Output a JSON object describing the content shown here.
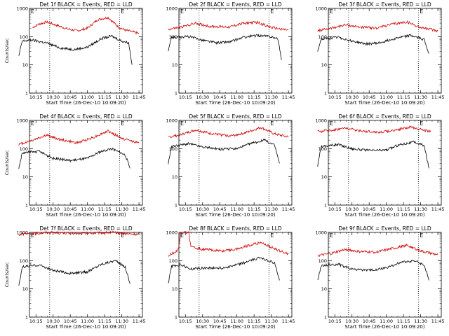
{
  "chart_data": [
    {
      "type": "line",
      "title": "Det 1f BLACK = Events, RED = LLD",
      "xlabel": "Start Time (26-Dec-10 10:09:20)",
      "ylabel": "Counts/sec",
      "yscale": "log",
      "ylim": [
        1,
        1000
      ],
      "xticks": [
        "10:15",
        "10:30",
        "10:45",
        "11:00",
        "11:15",
        "11:30",
        "11:45"
      ],
      "yticks": [
        "1",
        "10",
        "100",
        "1000"
      ],
      "markers": [
        "E",
        "E"
      ],
      "dotted_lines_at": [
        "10:27",
        "11:28"
      ],
      "series": [
        {
          "color": "#cc0000",
          "points": [
            [
              10.2,
              210
            ],
            [
              10.3,
              280
            ],
            [
              10.4,
              330
            ],
            [
              10.5,
              280
            ],
            [
              10.7,
              190
            ],
            [
              10.85,
              160
            ],
            [
              11.0,
              200
            ],
            [
              11.15,
              400
            ],
            [
              11.3,
              480
            ],
            [
              11.45,
              220
            ],
            [
              11.55,
              170
            ],
            [
              11.75,
              130
            ]
          ]
        },
        {
          "color": "#000000",
          "points": [
            [
              10.0,
              20
            ],
            [
              10.05,
              70
            ],
            [
              10.2,
              75
            ],
            [
              10.4,
              60
            ],
            [
              10.6,
              40
            ],
            [
              10.8,
              35
            ],
            [
              11.0,
              42
            ],
            [
              11.2,
              85
            ],
            [
              11.35,
              105
            ],
            [
              11.5,
              70
            ],
            [
              11.6,
              60
            ],
            [
              11.65,
              10
            ]
          ]
        }
      ]
    },
    {
      "type": "line",
      "title": "Det 2f BLACK = Events, RED = LLD",
      "xlabel": "Start Time (26-Dec-10 10:09:20)",
      "ylabel": "",
      "yscale": "log",
      "ylim": [
        1,
        1000
      ],
      "xticks": [
        "10:15",
        "10:30",
        "10:45",
        "11:00",
        "11:15",
        "11:30",
        "11:45"
      ],
      "yticks": [
        "1",
        "10",
        "100",
        "1000"
      ],
      "markers": [
        "E",
        "E"
      ],
      "dotted_lines_at": [
        "10:27",
        "11:28"
      ],
      "series": [
        {
          "color": "#cc0000",
          "points": [
            [
              10.0,
              180
            ],
            [
              10.2,
              220
            ],
            [
              10.4,
              300
            ],
            [
              10.6,
              230
            ],
            [
              10.9,
              220
            ],
            [
              11.1,
              300
            ],
            [
              11.3,
              320
            ],
            [
              11.5,
              210
            ],
            [
              11.75,
              170
            ]
          ]
        },
        {
          "color": "#000000",
          "points": [
            [
              10.0,
              30
            ],
            [
              10.05,
              95
            ],
            [
              10.3,
              100
            ],
            [
              10.5,
              75
            ],
            [
              10.7,
              60
            ],
            [
              10.9,
              65
            ],
            [
              11.1,
              95
            ],
            [
              11.3,
              110
            ],
            [
              11.5,
              100
            ],
            [
              11.6,
              80
            ],
            [
              11.65,
              15
            ]
          ]
        }
      ]
    },
    {
      "type": "line",
      "title": "Det 3f BLACK = Events, RED = LLD",
      "xlabel": "Start Time (26-Dec-10 10:09:20)",
      "ylabel": "",
      "yscale": "log",
      "ylim": [
        1,
        1000
      ],
      "xticks": [
        "10:15",
        "10:30",
        "10:45",
        "11:00",
        "11:15",
        "11:30",
        "11:45"
      ],
      "yticks": [
        "1",
        "10",
        "100",
        "1000"
      ],
      "markers": [
        "E",
        "E"
      ],
      "dotted_lines_at": [
        "10:27",
        "11:28"
      ],
      "series": [
        {
          "color": "#cc0000",
          "points": [
            [
              10.0,
              160
            ],
            [
              10.2,
              200
            ],
            [
              10.4,
              260
            ],
            [
              10.6,
              220
            ],
            [
              10.85,
              200
            ],
            [
              11.1,
              280
            ],
            [
              11.3,
              330
            ],
            [
              11.5,
              210
            ],
            [
              11.75,
              160
            ]
          ]
        },
        {
          "color": "#000000",
          "points": [
            [
              10.0,
              30
            ],
            [
              10.05,
              80
            ],
            [
              10.3,
              95
            ],
            [
              10.5,
              70
            ],
            [
              10.7,
              55
            ],
            [
              10.9,
              60
            ],
            [
              11.15,
              90
            ],
            [
              11.35,
              110
            ],
            [
              11.55,
              80
            ],
            [
              11.62,
              25
            ]
          ]
        }
      ]
    },
    {
      "type": "line",
      "title": "Det 4f BLACK = Events, RED = LLD",
      "xlabel": "Start Time (26-Dec-10 10:09:20)",
      "ylabel": "Counts/sec",
      "yscale": "log",
      "ylim": [
        1,
        1000
      ],
      "xticks": [
        "10:15",
        "10:30",
        "10:45",
        "11:00",
        "11:15",
        "11:30",
        "11:45"
      ],
      "yticks": [
        "1",
        "10",
        "100",
        "1000"
      ],
      "markers": [
        "E",
        "E"
      ],
      "dotted_lines_at": [
        "10:27",
        "11:28"
      ],
      "series": [
        {
          "color": "#cc0000",
          "points": [
            [
              10.0,
              140
            ],
            [
              10.2,
              200
            ],
            [
              10.4,
              300
            ],
            [
              10.6,
              210
            ],
            [
              10.85,
              160
            ],
            [
              11.1,
              260
            ],
            [
              11.3,
              420
            ],
            [
              11.5,
              230
            ],
            [
              11.75,
              160
            ]
          ]
        },
        {
          "color": "#000000",
          "points": [
            [
              10.0,
              20
            ],
            [
              10.05,
              70
            ],
            [
              10.3,
              80
            ],
            [
              10.5,
              45
            ],
            [
              10.75,
              38
            ],
            [
              11.0,
              45
            ],
            [
              11.2,
              80
            ],
            [
              11.35,
              100
            ],
            [
              11.55,
              60
            ],
            [
              11.62,
              20
            ]
          ]
        }
      ]
    },
    {
      "type": "line",
      "title": "Det 5f BLACK = Events, RED = LLD",
      "xlabel": "Start Time (26-Dec-10 10:09:20)",
      "ylabel": "",
      "yscale": "log",
      "ylim": [
        1,
        1000
      ],
      "xticks": [
        "10:15",
        "10:30",
        "10:45",
        "11:00",
        "11:15",
        "11:30",
        "11:45"
      ],
      "yticks": [
        "1",
        "10",
        "100",
        "1000"
      ],
      "markers": [
        "E",
        "E"
      ],
      "dotted_lines_at": [
        "10:27",
        "11:28"
      ],
      "series": [
        {
          "color": "#cc0000",
          "points": [
            [
              10.0,
              250
            ],
            [
              10.2,
              320
            ],
            [
              10.4,
              460
            ],
            [
              10.6,
              350
            ],
            [
              10.9,
              280
            ],
            [
              11.1,
              350
            ],
            [
              11.35,
              560
            ],
            [
              11.55,
              330
            ],
            [
              11.75,
              260
            ]
          ]
        },
        {
          "color": "#000000",
          "points": [
            [
              10.0,
              30
            ],
            [
              10.05,
              120
            ],
            [
              10.3,
              150
            ],
            [
              10.5,
              115
            ],
            [
              10.75,
              95
            ],
            [
              11.0,
              100
            ],
            [
              11.2,
              150
            ],
            [
              11.4,
              200
            ],
            [
              11.55,
              130
            ],
            [
              11.62,
              30
            ]
          ]
        }
      ]
    },
    {
      "type": "line",
      "title": "Det 6f BLACK = Events, RED = LLD",
      "xlabel": "Start Time (26-Dec-10 10:09:20)",
      "ylabel": "",
      "yscale": "log",
      "ylim": [
        1,
        1000
      ],
      "xticks": [
        "10:15",
        "10:30",
        "10:45",
        "11:00",
        "11:15",
        "11:30",
        "11:45"
      ],
      "yticks": [
        "1",
        "10",
        "100",
        "1000"
      ],
      "markers": [
        "E",
        "E"
      ],
      "dotted_lines_at": [
        "10:27",
        "11:28"
      ],
      "series": [
        {
          "color": "#cc0000",
          "points": [
            [
              10.0,
              400
            ],
            [
              10.2,
              450
            ],
            [
              10.4,
              540
            ],
            [
              10.6,
              430
            ],
            [
              10.9,
              380
            ],
            [
              11.1,
              440
            ],
            [
              11.35,
              580
            ],
            [
              11.55,
              450
            ],
            [
              11.65,
              400
            ]
          ]
        },
        {
          "color": "#000000",
          "points": [
            [
              10.0,
              25
            ],
            [
              10.05,
              120
            ],
            [
              10.3,
              140
            ],
            [
              10.5,
              100
            ],
            [
              10.75,
              85
            ],
            [
              11.0,
              90
            ],
            [
              11.2,
              140
            ],
            [
              11.4,
              170
            ],
            [
              11.55,
              130
            ],
            [
              11.62,
              20
            ]
          ]
        }
      ]
    },
    {
      "type": "line",
      "title": "Det 7f BLACK = Events, RED = LLD",
      "xlabel": "Start Time (26-Dec-10 10:09:20)",
      "ylabel": "Counts/sec",
      "yscale": "log",
      "ylim": [
        1,
        1000
      ],
      "xticks": [
        "10:15",
        "10:30",
        "10:45",
        "11:00",
        "11:15",
        "11:30",
        "11:45"
      ],
      "yticks": [
        "1",
        "10",
        "100",
        "1000"
      ],
      "markers": [
        "E",
        "E"
      ],
      "dotted_lines_at": [
        "10:27",
        "11:28"
      ],
      "series": [
        {
          "color": "#cc0000",
          "points": [
            [
              10.0,
              850
            ],
            [
              10.2,
              900
            ],
            [
              10.4,
              1000
            ],
            [
              10.6,
              950
            ],
            [
              10.9,
              900
            ],
            [
              11.1,
              950
            ],
            [
              11.35,
              1000
            ],
            [
              11.55,
              900
            ],
            [
              11.75,
              850
            ]
          ]
        },
        {
          "color": "#000000",
          "points": [
            [
              10.0,
              12
            ],
            [
              10.05,
              60
            ],
            [
              10.3,
              70
            ],
            [
              10.5,
              45
            ],
            [
              10.75,
              35
            ],
            [
              11.0,
              40
            ],
            [
              11.2,
              75
            ],
            [
              11.4,
              100
            ],
            [
              11.55,
              60
            ],
            [
              11.62,
              15
            ]
          ]
        }
      ]
    },
    {
      "type": "line",
      "title": "Det 8f BLACK = Events, RED = LLD",
      "xlabel": "Start Time (26-Dec-10 10:09:20)",
      "ylabel": "",
      "yscale": "log",
      "ylim": [
        1,
        1000
      ],
      "xticks": [
        "10:15",
        "10:30",
        "10:45",
        "11:00",
        "11:15",
        "11:30",
        "11:45"
      ],
      "yticks": [
        "1",
        "10",
        "100",
        "1000"
      ],
      "markers": [
        "E",
        "E"
      ],
      "dotted_lines_at": [
        "10:27",
        "11:28"
      ],
      "series": [
        {
          "color": "#cc0000",
          "points": [
            [
              10.0,
              150
            ],
            [
              10.1,
              200
            ],
            [
              10.15,
              260
            ],
            [
              10.18,
              1000
            ],
            [
              10.3,
              1000
            ],
            [
              10.33,
              300
            ],
            [
              10.5,
              250
            ],
            [
              10.8,
              220
            ],
            [
              11.0,
              260
            ],
            [
              11.2,
              360
            ],
            [
              11.35,
              440
            ],
            [
              11.55,
              260
            ],
            [
              11.75,
              170
            ]
          ]
        },
        {
          "color": "#000000",
          "points": [
            [
              10.0,
              15
            ],
            [
              10.05,
              65
            ],
            [
              10.2,
              70
            ],
            [
              10.32,
              50
            ],
            [
              10.5,
              55
            ],
            [
              10.8,
              55
            ],
            [
              11.0,
              70
            ],
            [
              11.2,
              100
            ],
            [
              11.35,
              130
            ],
            [
              11.55,
              80
            ],
            [
              11.62,
              20
            ]
          ]
        }
      ]
    },
    {
      "type": "line",
      "title": "Det 9f BLACK = Events, RED = LLD",
      "xlabel": "Start Time (26-Dec-10 10:09:20)",
      "ylabel": "",
      "yscale": "log",
      "ylim": [
        1,
        1000
      ],
      "xticks": [
        "10:15",
        "10:30",
        "10:45",
        "11:00",
        "11:15",
        "11:30",
        "11:45"
      ],
      "yticks": [
        "1",
        "10",
        "100",
        "1000"
      ],
      "markers": [
        "E",
        "E"
      ],
      "dotted_lines_at": [
        "10:27",
        "11:28"
      ],
      "series": [
        {
          "color": "#cc0000",
          "points": [
            [
              10.0,
              150
            ],
            [
              10.2,
              180
            ],
            [
              10.4,
              250
            ],
            [
              10.6,
              210
            ],
            [
              10.85,
              200
            ],
            [
              11.1,
              270
            ],
            [
              11.3,
              350
            ],
            [
              11.5,
              220
            ],
            [
              11.75,
              160
            ]
          ]
        },
        {
          "color": "#000000",
          "points": [
            [
              10.0,
              20
            ],
            [
              10.05,
              65
            ],
            [
              10.3,
              75
            ],
            [
              10.5,
              50
            ],
            [
              10.75,
              45
            ],
            [
              11.0,
              55
            ],
            [
              11.2,
              85
            ],
            [
              11.4,
              100
            ],
            [
              11.55,
              70
            ],
            [
              11.62,
              20
            ]
          ]
        }
      ]
    }
  ]
}
